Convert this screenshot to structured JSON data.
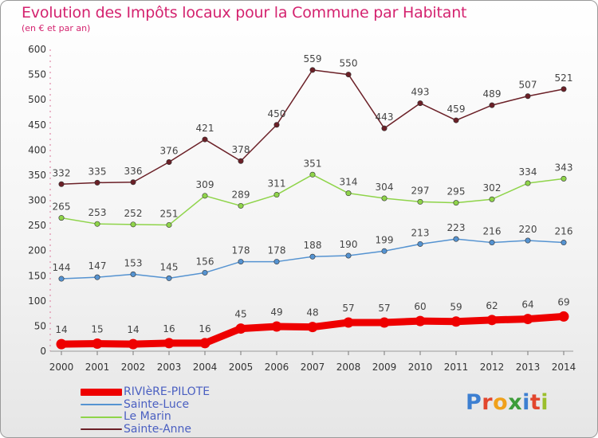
{
  "title": "Evolution des Impôts locaux pour la Commune par Habitant",
  "subtitle": "(en € et par an)",
  "logo": {
    "letters": [
      {
        "ch": "P",
        "color": "#3d7fd1"
      },
      {
        "ch": "r",
        "color": "#e2462d"
      },
      {
        "ch": "o",
        "color": "#f0a11b"
      },
      {
        "ch": "x",
        "color": "#3d9d3a"
      },
      {
        "ch": "i",
        "color": "#3d7fd1"
      },
      {
        "ch": "t",
        "color": "#e2462d"
      },
      {
        "ch": "i",
        "color": "#9bbf2c"
      }
    ]
  },
  "chart_data": {
    "type": "line",
    "x": [
      "2000",
      "2001",
      "2002",
      "2003",
      "2004",
      "2005",
      "2006",
      "2007",
      "2008",
      "2009",
      "2010",
      "2011",
      "2012",
      "2013",
      "2014"
    ],
    "ylim": [
      0,
      600
    ],
    "yticks": [
      0,
      50,
      100,
      150,
      200,
      250,
      300,
      350,
      400,
      450,
      500,
      550,
      600
    ],
    "grid": false,
    "legend_position": "bottom-left",
    "series": [
      {
        "name": "RIVIèRE-PILOTE",
        "color": "#ee0000",
        "emphasis": true,
        "values": [
          14,
          15,
          14,
          16,
          16,
          45,
          49,
          48,
          57,
          57,
          60,
          59,
          62,
          64,
          69
        ]
      },
      {
        "name": "Sainte-Luce",
        "color": "#5593d1",
        "values": [
          144,
          147,
          153,
          145,
          156,
          178,
          178,
          188,
          190,
          199,
          213,
          223,
          216,
          220,
          216
        ]
      },
      {
        "name": "Le Marin",
        "color": "#8fd44a",
        "values": [
          265,
          253,
          252,
          251,
          309,
          289,
          311,
          351,
          314,
          304,
          297,
          295,
          302,
          334,
          343
        ]
      },
      {
        "name": "Sainte-Anne",
        "color": "#6b2027",
        "values": [
          332,
          335,
          336,
          376,
          421,
          378,
          450,
          559,
          550,
          443,
          493,
          459,
          489,
          507,
          521
        ]
      }
    ]
  }
}
